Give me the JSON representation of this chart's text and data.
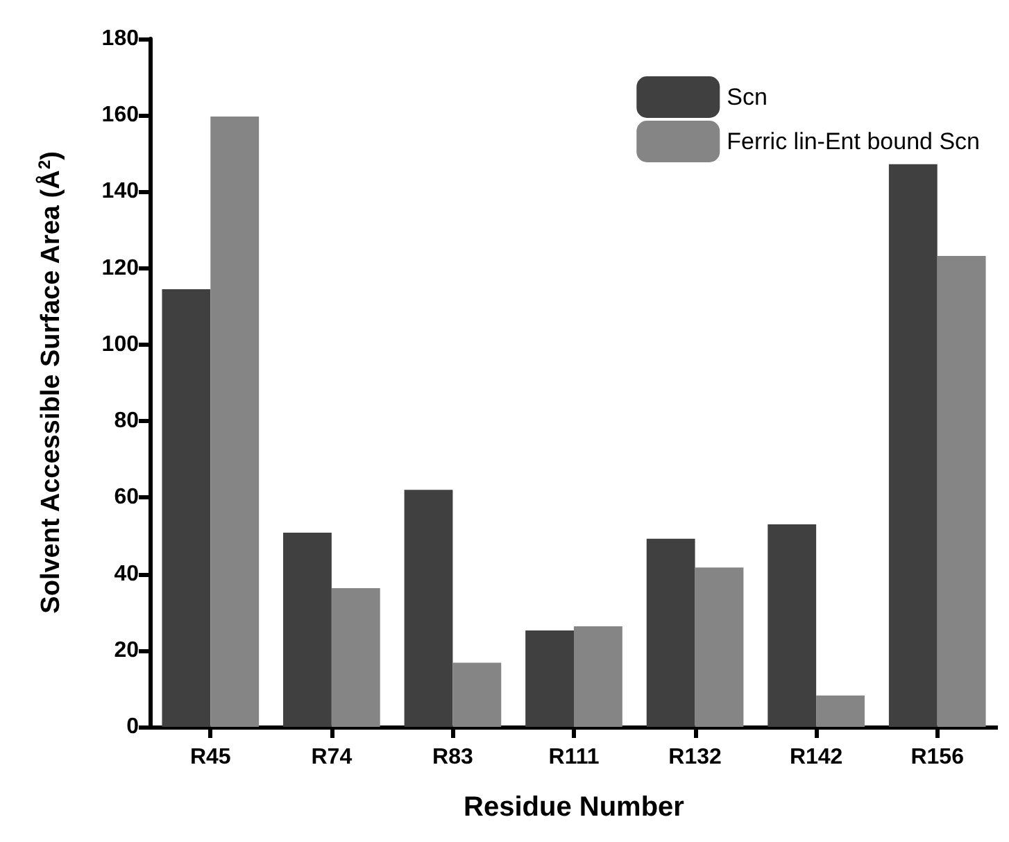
{
  "chart_data": {
    "type": "bar",
    "xlabel": "Residue Number",
    "ylabel": "Solvent Accessible Surface Area (Å$^{2}$)",
    "categories": [
      "R45",
      "R74",
      "R83",
      "R111",
      "R132",
      "R142",
      "R156"
    ],
    "series": [
      {
        "name": "Scn",
        "color": "#404040",
        "values": [
          114.5,
          50.8,
          62,
          25.2,
          49.2,
          53,
          147.2
        ]
      },
      {
        "name": "Ferric lin-Ent bound Scn",
        "color": "#858585",
        "values": [
          159.7,
          36.3,
          16.8,
          26.3,
          41.7,
          8.2,
          123.2
        ]
      }
    ],
    "ylim": [
      0,
      180
    ],
    "yticks": [
      0,
      20,
      40,
      60,
      80,
      100,
      120,
      140,
      160,
      180
    ],
    "grid": false,
    "legend": "top right"
  }
}
